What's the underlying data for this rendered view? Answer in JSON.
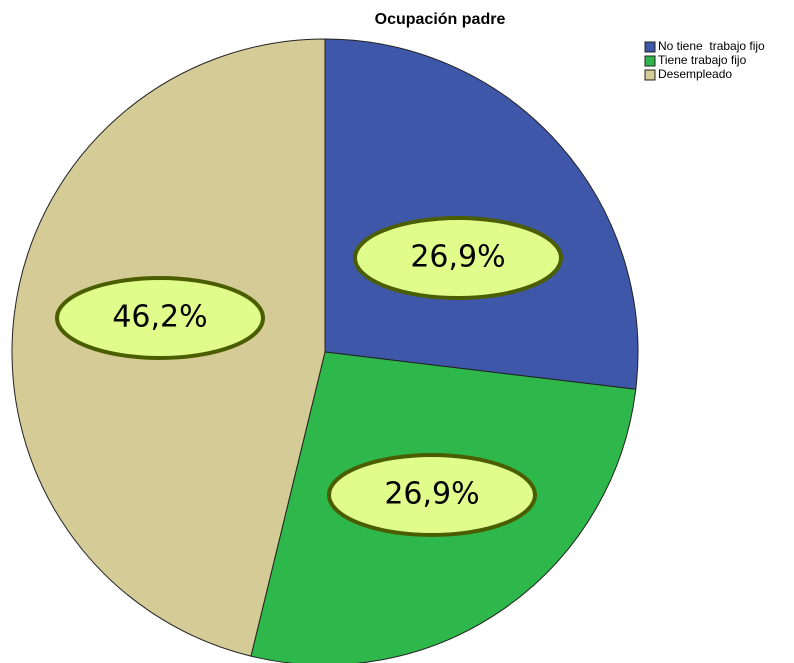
{
  "chart_data": {
    "type": "pie",
    "title": "Ocupación padre",
    "categories": [
      "No tiene  trabajo fijo",
      "Tiene trabajo fijo",
      "Desempleado"
    ],
    "values": [
      26.9,
      26.9,
      46.2
    ],
    "value_labels": [
      "26,9%",
      "26,9%",
      "46,2%"
    ],
    "colors": [
      "#3f57a8",
      "#2eb84b",
      "#d4cb97"
    ],
    "legend": "top-right"
  }
}
